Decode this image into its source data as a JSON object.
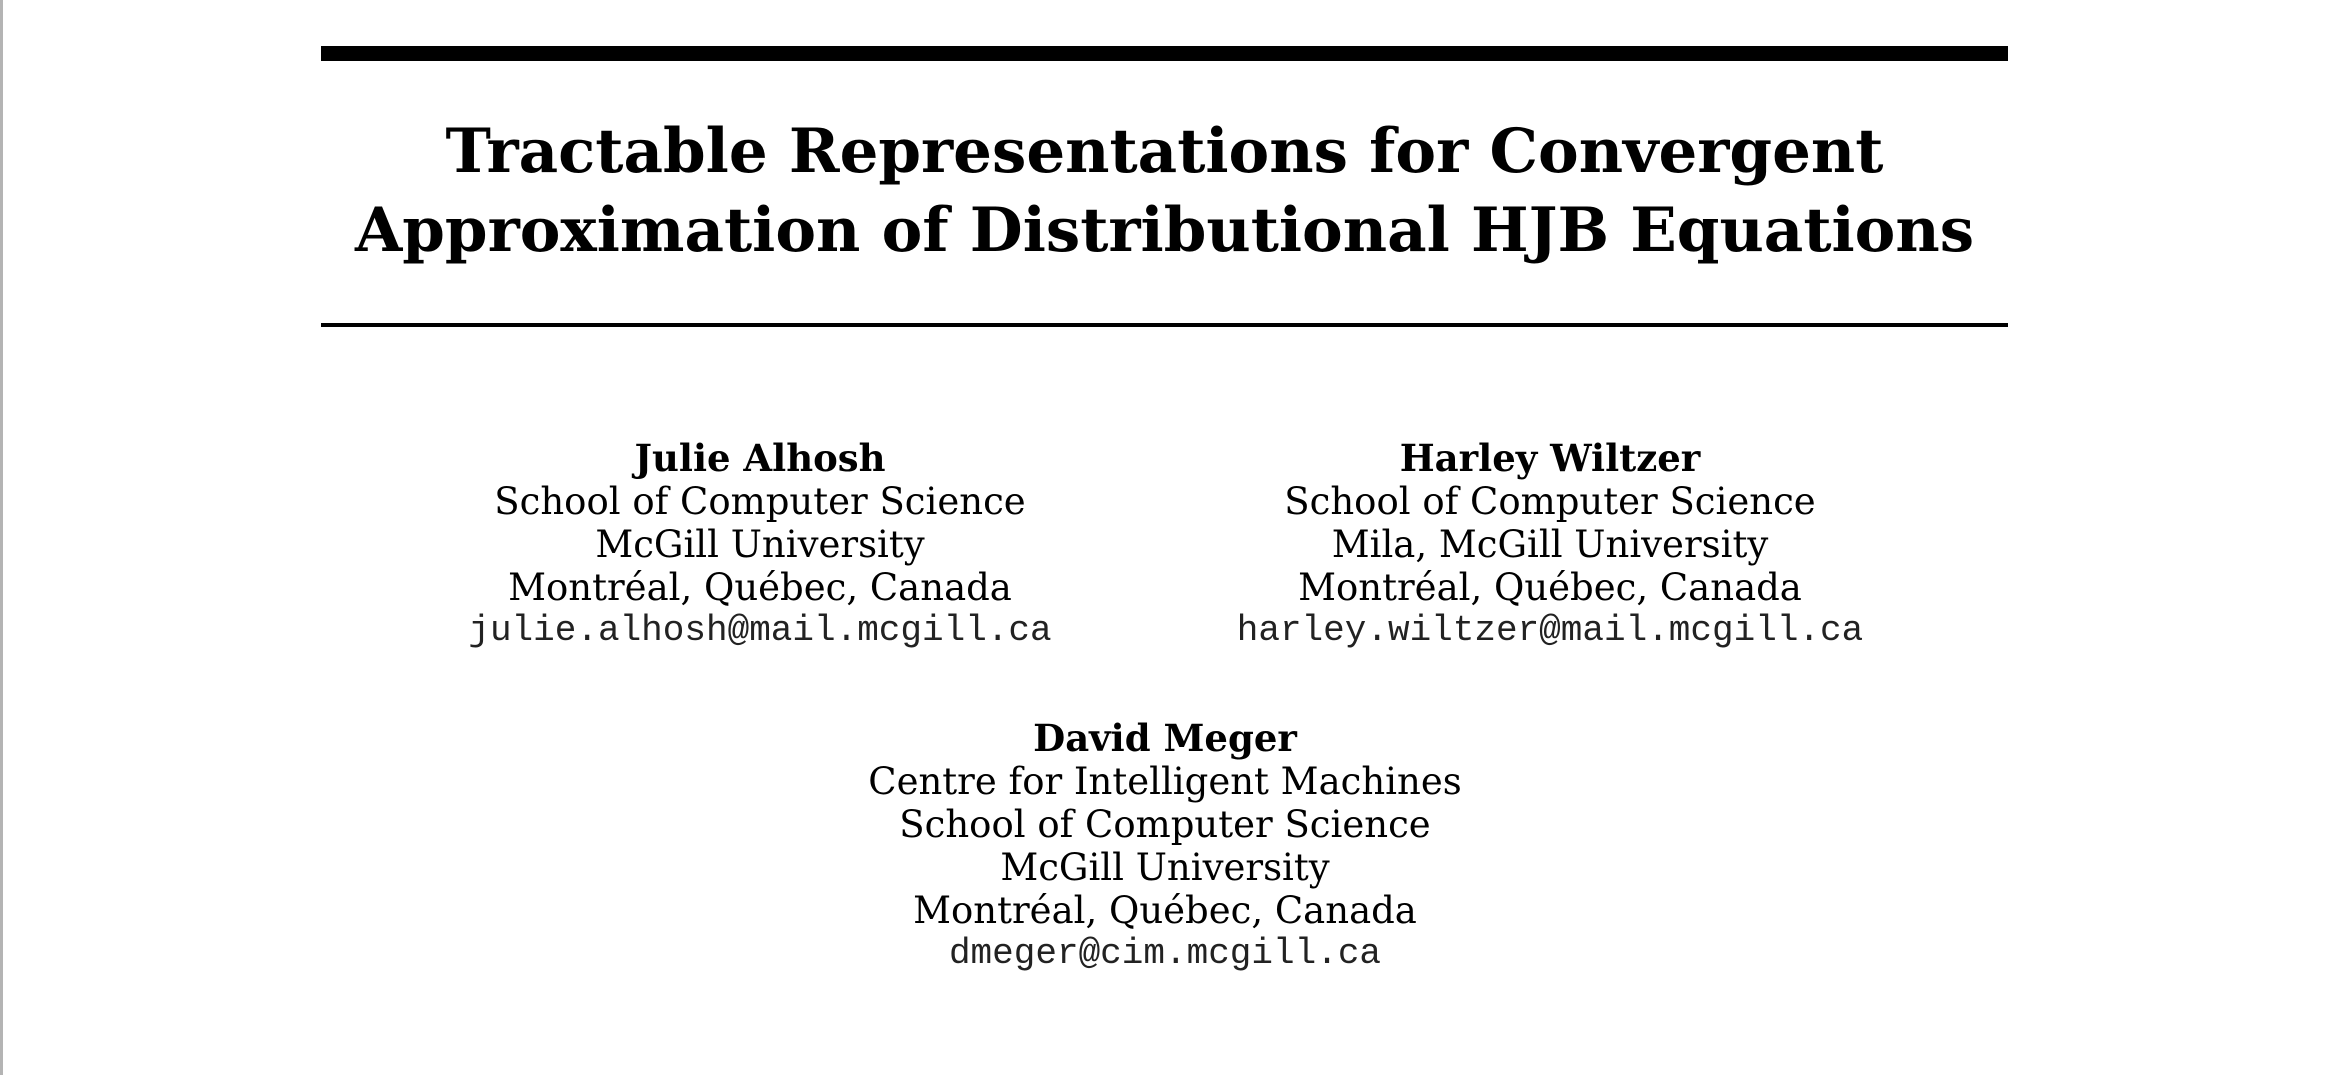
{
  "paper": {
    "title_line_1": "Tractable Representations for Convergent",
    "title_line_2": "Approximation of Distributional HJB Equations",
    "authors": [
      {
        "name": "Julie Alhosh",
        "affiliation": [
          "School of Computer Science",
          "McGill University",
          "Montréal, Québec, Canada"
        ],
        "email": "julie.alhosh@mail.mcgill.ca"
      },
      {
        "name": "Harley Wiltzer",
        "affiliation": [
          "School of Computer Science",
          "Mila, McGill University",
          "Montréal, Québec, Canada"
        ],
        "email": "harley.wiltzer@mail.mcgill.ca"
      },
      {
        "name": "David Meger",
        "affiliation": [
          "Centre for Intelligent Machines",
          "School of Computer Science",
          "McGill University",
          "Montréal, Québec, Canada"
        ],
        "email": "dmeger@cim.mcgill.ca"
      }
    ]
  }
}
